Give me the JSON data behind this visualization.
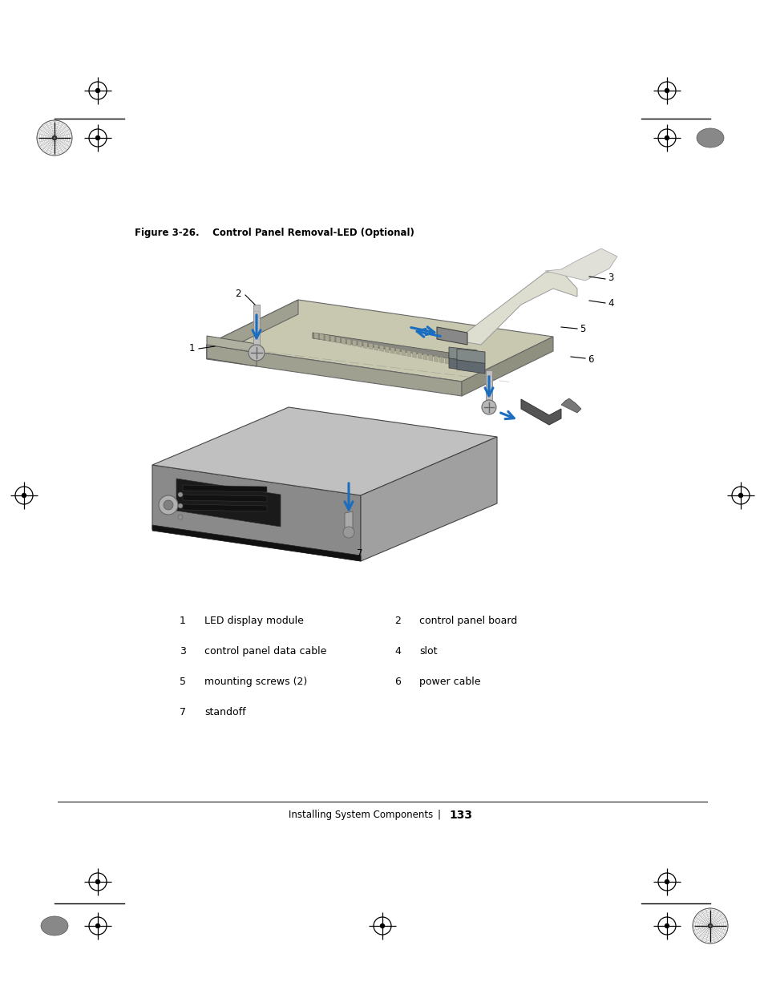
{
  "title": "Figure 3-26.    Control Panel Removal-LED (Optional)",
  "title_fontsize": 8.5,
  "background_color": "#ffffff",
  "legend_items_left": [
    {
      "num": "1",
      "label": "LED display module"
    },
    {
      "num": "3",
      "label": "control panel data cable"
    },
    {
      "num": "5",
      "label": "mounting screws (2)"
    },
    {
      "num": "7",
      "label": "standoff"
    }
  ],
  "legend_items_right": [
    {
      "num": "2",
      "label": "control panel board"
    },
    {
      "num": "4",
      "label": "slot"
    },
    {
      "num": "6",
      "label": "power cable"
    }
  ],
  "footer_text": "Installing System Components",
  "footer_sep": "|",
  "footer_page": "133",
  "arrow_color": "#1a6dbf",
  "reg_cross_color": "#000000",
  "reg_fill_color": "#888888",
  "reg_texture_color": "#555555",
  "line_color": "#000000"
}
